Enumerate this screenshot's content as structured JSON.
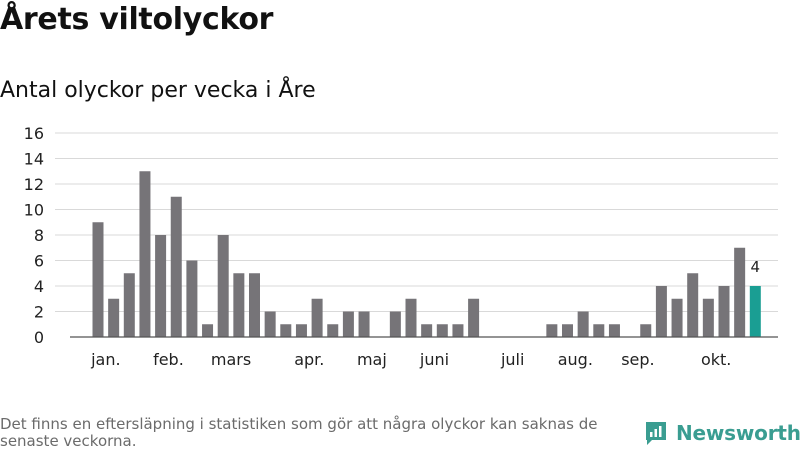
{
  "header": {
    "title": "Årets viltolyckor",
    "subtitle": "Antal olyckor per vecka i Åre"
  },
  "footer": {
    "note": "Det finns en eftersläpning i statistiken som gör att några olyckor kan saknas de senaste veckorna.",
    "brand": "Newsworthy"
  },
  "colors": {
    "bar": "#767478",
    "highlight": "#1a9e93",
    "grid": "#d9d9d9",
    "brand": "#3a9d91"
  },
  "chart_data": {
    "type": "bar",
    "weeks": [
      1,
      2,
      3,
      4,
      5,
      6,
      7,
      8,
      9,
      10,
      11,
      12,
      13,
      14,
      15,
      16,
      17,
      18,
      19,
      20,
      21,
      22,
      23,
      24,
      25,
      26,
      27,
      28,
      29,
      30,
      31,
      32,
      33,
      34,
      35,
      36,
      37,
      38,
      39,
      40,
      41,
      42
    ],
    "values": [
      9,
      3,
      5,
      13,
      8,
      11,
      6,
      1,
      8,
      5,
      5,
      2,
      1,
      1,
      3,
      1,
      2,
      2,
      0,
      2,
      3,
      1,
      1,
      1,
      3,
      0,
      0,
      0,
      0,
      1,
      1,
      2,
      1,
      1,
      0,
      1,
      4,
      3,
      5,
      3,
      4,
      7
    ],
    "last_week_value": 4,
    "highlight_label": "4",
    "ylim": [
      0,
      16
    ],
    "yticks": [
      "0",
      "2",
      "4",
      "6",
      "8",
      "10",
      "12",
      "14",
      "16"
    ],
    "month_labels": [
      {
        "label": "jan.",
        "week": 1.5
      },
      {
        "label": "feb.",
        "week": 5.5
      },
      {
        "label": "mars",
        "week": 9.5
      },
      {
        "label": "apr.",
        "week": 14.5
      },
      {
        "label": "maj",
        "week": 18.5
      },
      {
        "label": "juni",
        "week": 22.5
      },
      {
        "label": "juli",
        "week": 27.5
      },
      {
        "label": "aug.",
        "week": 31.5
      },
      {
        "label": "sep.",
        "week": 35.5
      },
      {
        "label": "okt.",
        "week": 40.5
      }
    ],
    "grid": true
  }
}
